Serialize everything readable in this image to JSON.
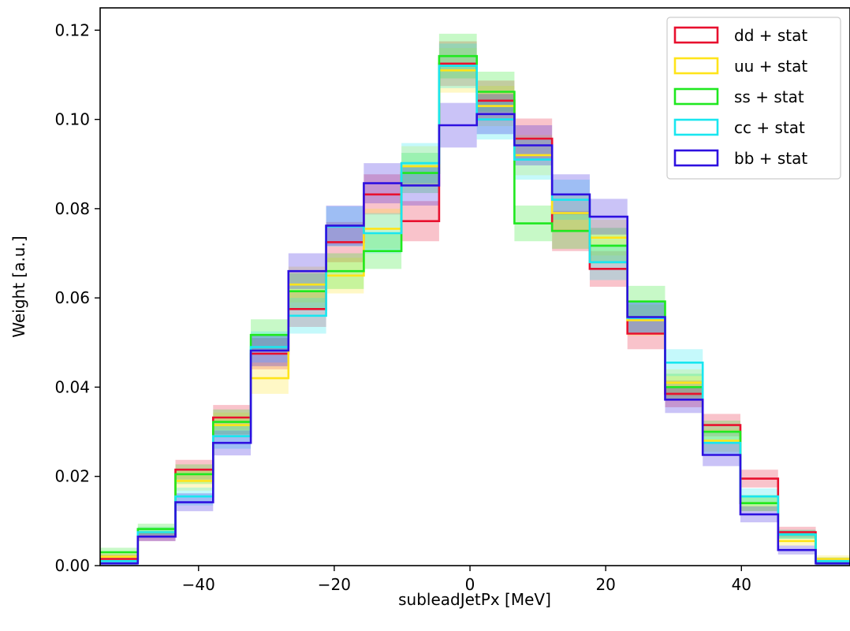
{
  "chart_data": {
    "type": "histogram-step",
    "xlabel": "subleadJetPx [MeV]",
    "ylabel": "Weight [a.u.]",
    "xlim": [
      -54.5,
      56.0
    ],
    "ylim": [
      0.0,
      0.125
    ],
    "xticks": [
      -40,
      -20,
      0,
      20,
      40
    ],
    "xtick_labels": [
      "−40",
      "−20",
      "0",
      "20",
      "40"
    ],
    "yticks": [
      0.0,
      0.02,
      0.04,
      0.06,
      0.08,
      0.1,
      0.12
    ],
    "ytick_labels": [
      "0.00",
      "0.02",
      "0.04",
      "0.06",
      "0.08",
      "0.10",
      "0.12"
    ],
    "grid": false,
    "legend_position": "top-right",
    "bin_edges": [
      -54.5,
      -48.95,
      -43.4,
      -37.85,
      -32.3,
      -26.75,
      -21.2,
      -15.65,
      -10.1,
      -4.55,
      1.0,
      6.55,
      12.1,
      17.65,
      23.2,
      28.75,
      34.3,
      39.85,
      45.4,
      50.95,
      56.5
    ],
    "series": [
      {
        "name": "dd + stat",
        "color": "#e8102e",
        "values": [
          0.0015,
          0.0065,
          0.0215,
          0.0332,
          0.0475,
          0.0575,
          0.0725,
          0.0832,
          0.0772,
          0.1125,
          0.1042,
          0.0957,
          0.075,
          0.0665,
          0.052,
          0.0385,
          0.0315,
          0.0195,
          0.0075,
          0.001
        ],
        "errors": [
          0.001,
          0.001,
          0.0022,
          0.0028,
          0.0035,
          0.004,
          0.0045,
          0.0045,
          0.0045,
          0.005,
          0.0045,
          0.0045,
          0.0045,
          0.004,
          0.0035,
          0.003,
          0.0025,
          0.002,
          0.0012,
          0.0008
        ]
      },
      {
        "name": "uu + stat",
        "color": "#ffe41a",
        "values": [
          0.002,
          0.0075,
          0.019,
          0.0315,
          0.042,
          0.063,
          0.065,
          0.0755,
          0.0895,
          0.111,
          0.103,
          0.092,
          0.079,
          0.0735,
          0.055,
          0.041,
          0.028,
          0.014,
          0.0055,
          0.0015
        ],
        "errors": [
          0.001,
          0.0012,
          0.0022,
          0.0028,
          0.0035,
          0.004,
          0.004,
          0.0045,
          0.0045,
          0.005,
          0.0045,
          0.0045,
          0.004,
          0.004,
          0.0035,
          0.003,
          0.0025,
          0.0018,
          0.001,
          0.0008
        ]
      },
      {
        "name": "ss + stat",
        "color": "#1fe81f",
        "values": [
          0.003,
          0.0082,
          0.0205,
          0.0322,
          0.0517,
          0.0615,
          0.066,
          0.0705,
          0.088,
          0.1142,
          0.1062,
          0.0767,
          0.075,
          0.0717,
          0.0592,
          0.04,
          0.03,
          0.014,
          0.007,
          0.001
        ],
        "errors": [
          0.001,
          0.0012,
          0.0022,
          0.0028,
          0.0035,
          0.004,
          0.004,
          0.004,
          0.0045,
          0.005,
          0.0045,
          0.004,
          0.004,
          0.004,
          0.0035,
          0.003,
          0.0025,
          0.0018,
          0.001,
          0.0008
        ]
      },
      {
        "name": "cc + stat",
        "color": "#19e6f0",
        "values": [
          0.001,
          0.0075,
          0.0155,
          0.029,
          0.049,
          0.056,
          0.076,
          0.0745,
          0.0902,
          0.112,
          0.1,
          0.091,
          0.082,
          0.068,
          0.0555,
          0.0455,
          0.0275,
          0.0155,
          0.007,
          0.001
        ],
        "errors": [
          0.0008,
          0.0012,
          0.002,
          0.0028,
          0.0035,
          0.004,
          0.0045,
          0.0045,
          0.0045,
          0.005,
          0.0045,
          0.0045,
          0.0045,
          0.004,
          0.0035,
          0.003,
          0.0025,
          0.0018,
          0.001,
          0.0008
        ]
      },
      {
        "name": "bb + stat",
        "color": "#2d10e0",
        "values": [
          0.0005,
          0.0065,
          0.0142,
          0.0275,
          0.0482,
          0.066,
          0.0762,
          0.0857,
          0.0852,
          0.0987,
          0.1012,
          0.0942,
          0.0832,
          0.0782,
          0.0557,
          0.0372,
          0.0248,
          0.0115,
          0.0035,
          0.0005
        ],
        "errors": [
          0.0008,
          0.001,
          0.002,
          0.0028,
          0.0035,
          0.004,
          0.0045,
          0.0045,
          0.0045,
          0.005,
          0.0045,
          0.0045,
          0.0045,
          0.004,
          0.0035,
          0.003,
          0.0025,
          0.0018,
          0.001,
          0.0008
        ]
      }
    ]
  }
}
